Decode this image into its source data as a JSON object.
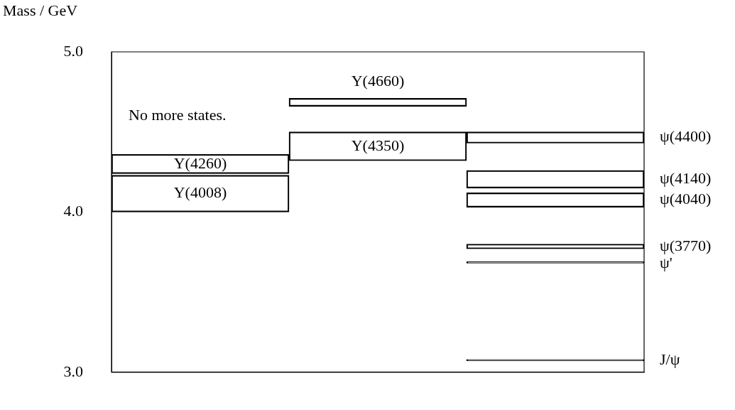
{
  "chart_data": {
    "type": "bar",
    "ylabel": "Mass / GeV",
    "categories": [
      null,
      null,
      null
    ],
    "series": [
      {
        "name": "Y(4008)",
        "color": "#000000",
        "base": [
          4.0,
          null,
          null
        ],
        "values": [
          0.23,
          null,
          null
        ]
      },
      {
        "name": "Y(4260)",
        "color": "#000000",
        "base": [
          4.24,
          null,
          null
        ],
        "values": [
          0.12,
          null,
          null
        ]
      },
      {
        "name": "Y(4350)",
        "color": "#000000",
        "base": [
          null,
          4.32,
          null
        ],
        "values": [
          null,
          0.18,
          null
        ]
      },
      {
        "name": "Y(4660)",
        "color": "#000000",
        "base": [
          null,
          4.66,
          null
        ],
        "values": [
          null,
          0.05,
          null
        ]
      },
      {
        "name": "ψ(4400)",
        "color": "#000000",
        "base": [
          null,
          null,
          4.43
        ],
        "values": [
          null,
          null,
          0.07
        ]
      },
      {
        "name": "ψ(4140)",
        "color": "#000000",
        "base": [
          null,
          null,
          4.15
        ],
        "values": [
          null,
          null,
          0.11
        ]
      },
      {
        "name": "ψ(4040)",
        "color": "#000000",
        "base": [
          null,
          null,
          4.03
        ],
        "values": [
          null,
          null,
          0.09
        ]
      },
      {
        "name": "ψ(3770)",
        "color": "#000000",
        "base": [
          null,
          null,
          3.77
        ],
        "values": [
          null,
          null,
          0.03
        ]
      },
      {
        "name": "ψ'",
        "color": "#000000",
        "base": [
          null,
          null,
          3.68
        ],
        "values": [
          null,
          null,
          0.01
        ]
      },
      {
        "name": "J/ψ",
        "color": "#000000",
        "base": [
          null,
          null,
          3.07
        ],
        "values": [
          null,
          null,
          0.01
        ]
      }
    ],
    "ylim": [
      3.0,
      5.0
    ],
    "yticks": [
      {
        "value": 3,
        "label": "3.0"
      },
      {
        "value": 4,
        "label": "4.0"
      },
      {
        "value": 5,
        "label": "5.0"
      }
    ],
    "tick_labels": "y",
    "grid": false,
    "legend": false,
    "annotations": [
      "No more states."
    ]
  }
}
